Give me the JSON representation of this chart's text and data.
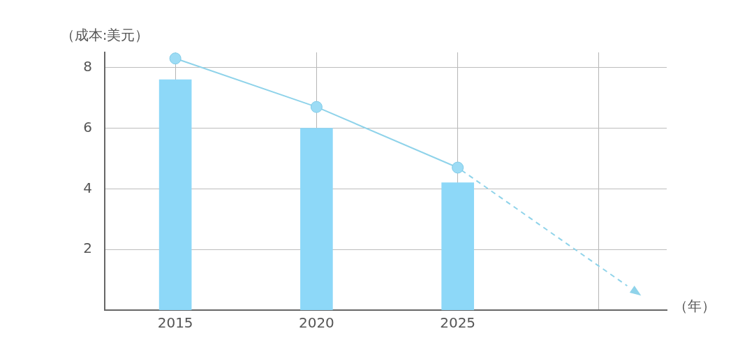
{
  "chart_data": {
    "type": "bar",
    "ylabel": "（成本:美元）",
    "annotations": [
      "（年）"
    ],
    "x": [
      2015,
      2020,
      2025
    ],
    "xlim": [
      2012.5,
      2032.4
    ],
    "xticks": [
      2015,
      2020,
      2025,
      {
        "value": 2030,
        "label": null
      }
    ],
    "ylim": [
      0,
      8.5
    ],
    "yticks": [
      2,
      4,
      6,
      8
    ],
    "grid": true,
    "legend": false,
    "series": [
      {
        "color": "#8dd8f8",
        "values": [
          7.6,
          6.0,
          4.2
        ]
      },
      {
        "type": "line",
        "color": "#8fd3ea",
        "values": [
          8.3,
          6.7,
          4.7
        ],
        "marker": "circle",
        "line_style": "solid"
      },
      {
        "type": "line",
        "color": "#8fd3ea",
        "x": [
          2025,
          2031
        ],
        "values": [
          4.7,
          0.8
        ],
        "marker": "none",
        "line_style": "dashed"
      }
    ]
  }
}
